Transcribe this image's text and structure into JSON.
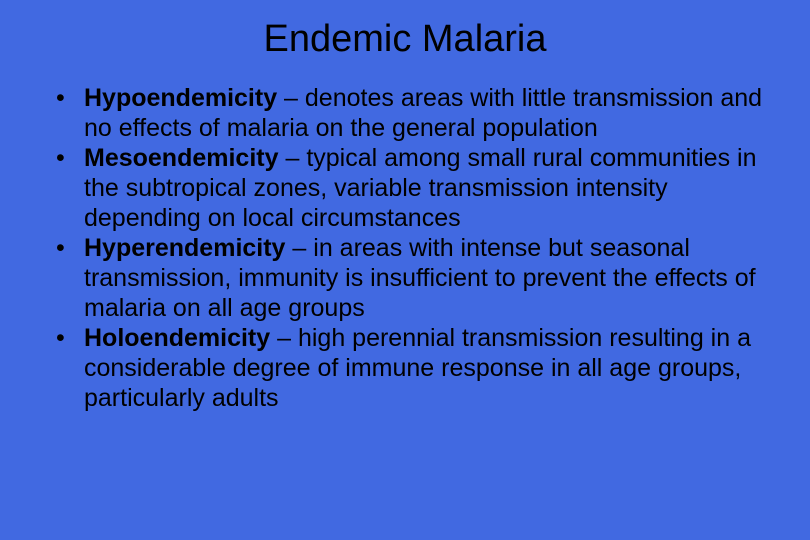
{
  "slide": {
    "background_color": "#4169e1",
    "text_color": "#000000",
    "title": "Endemic Malaria",
    "title_fontsize": 38,
    "title_align": "center",
    "body_fontsize": 25,
    "line_height": 1.2,
    "font_family": "Arial",
    "bullets": [
      {
        "term": "Hypoendemicity",
        "sep": " – ",
        "desc": "denotes areas with little transmission and no effects of malaria on the general population"
      },
      {
        "term": "Mesoendemicity",
        "sep": " – ",
        "desc": "typical among small rural communities in the subtropical zones, variable transmission intensity depending on local circumstances"
      },
      {
        "term": "Hyperendemicity",
        "sep": " – ",
        "desc": "in areas with intense but seasonal transmission, immunity is insufficient to prevent the effects of malaria on all age groups"
      },
      {
        "term": "Holoendemicity",
        "sep": " – ",
        "desc": "high perennial transmission resulting in a considerable degree of immune response in all age groups, particularly adults"
      }
    ]
  }
}
